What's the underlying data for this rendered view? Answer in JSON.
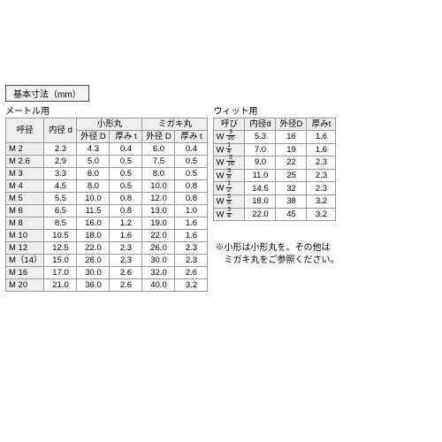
{
  "title": "基本寸法（mm）",
  "metric": {
    "subtitle": "メートル用",
    "group_small": "小形丸",
    "group_migaki": "ミガキ丸",
    "headers": {
      "name": "呼径",
      "id": "内径 d",
      "od": "外径 D",
      "th": "厚み t"
    },
    "rows": [
      {
        "n": "M 2",
        "id": "2.3",
        "sD": "4.3",
        "st": "0.4",
        "mD": "6.0",
        "mt": "0.4"
      },
      {
        "n": "M 2.6",
        "id": "2.9",
        "sD": "5.0",
        "st": "0.5",
        "mD": "7.5",
        "mt": "0.5"
      },
      {
        "n": "M 3",
        "id": "3.3",
        "sD": "6.0",
        "st": "0.5",
        "mD": "8.0",
        "mt": "0.5"
      },
      {
        "n": "M 4",
        "id": "4.5",
        "sD": "8.0",
        "st": "0.5",
        "mD": "10.0",
        "mt": "0.8"
      },
      {
        "n": "M 5",
        "id": "5.5",
        "sD": "10.0",
        "st": "0.8",
        "mD": "12.0",
        "mt": "0.8"
      },
      {
        "n": "M 6",
        "id": "6.5",
        "sD": "11.5",
        "st": "0.8",
        "mD": "13.0",
        "mt": "1.0"
      },
      {
        "n": "M 8",
        "id": "8.5",
        "sD": "16.0",
        "st": "1.2",
        "mD": "19.0",
        "mt": "1.6"
      },
      {
        "n": "M 10",
        "id": "10.5",
        "sD": "18.0",
        "st": "1.6",
        "mD": "22.0",
        "mt": "1.6"
      },
      {
        "n": "M 12",
        "id": "12.5",
        "sD": "22.0",
        "st": "2.3",
        "mD": "26.0",
        "mt": "2.3"
      },
      {
        "n": "M（14）",
        "id": "15.0",
        "sD": "26.0",
        "st": "2.3",
        "mD": "30.0",
        "mt": "2.3"
      },
      {
        "n": "M 16",
        "id": "17.0",
        "sD": "30.0",
        "st": "2.6",
        "mD": "32.0",
        "mt": "2.6"
      },
      {
        "n": "M 20",
        "id": "21.0",
        "sD": "36.0",
        "st": "2.6",
        "mD": "40.0",
        "mt": "3.2"
      }
    ]
  },
  "wit": {
    "subtitle": "ウィット用",
    "headers": {
      "name": "呼び",
      "id": "内径d",
      "od": "外径D",
      "th": "厚みt"
    },
    "rows": [
      {
        "w": "W",
        "fn": "3",
        "fd": "16",
        "id": "5.3",
        "od": "16",
        "t": "1.6"
      },
      {
        "w": "W",
        "fn": "1",
        "fd": "4",
        "id": "7.0",
        "od": "19",
        "t": "1.6"
      },
      {
        "w": "W",
        "fn": "5",
        "fd": "16",
        "id": "9.0",
        "od": "22",
        "t": "2.3"
      },
      {
        "w": "W",
        "fn": "3",
        "fd": "8",
        "id": "11.0",
        "od": "25",
        "t": "2.3"
      },
      {
        "w": "W",
        "fn": "1",
        "fd": "2",
        "id": "14.5",
        "od": "32",
        "t": "2.3"
      },
      {
        "w": "W",
        "fn": "5",
        "fd": "8",
        "id": "18.0",
        "od": "38",
        "t": "3.2"
      },
      {
        "w": "W",
        "fn": "3",
        "fd": "4",
        "id": "22.0",
        "od": "45",
        "t": "3.2"
      }
    ]
  },
  "note_l1": "※小形は小形丸を、その他は",
  "note_l2": "　ミガキ丸をご参照ください。"
}
